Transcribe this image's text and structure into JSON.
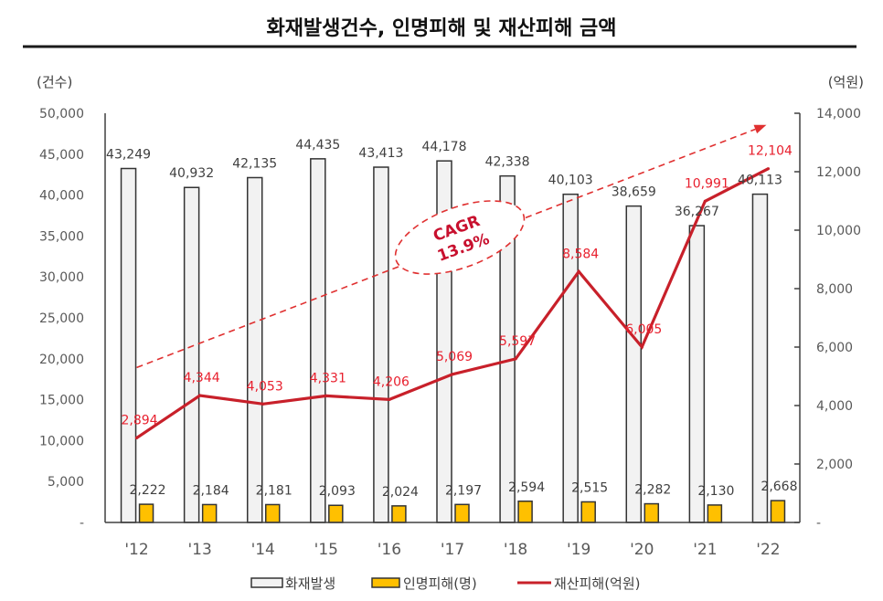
{
  "title": "화재발생건수, 인명피해 및 재산피해 금액",
  "chart_data": {
    "type": "bar+line",
    "title": "화재발생건수, 인명피해 및 재산피해 금액",
    "categories": [
      "'12",
      "'13",
      "'14",
      "'15",
      "'16",
      "'17",
      "'18",
      "'19",
      "'20",
      "'21",
      "'22"
    ],
    "series": [
      {
        "name": "화재발생",
        "type": "bar",
        "axis": "left",
        "color": "#f2f2f2",
        "values": [
          43249,
          40932,
          42135,
          44435,
          43413,
          44178,
          42338,
          40103,
          38659,
          36267,
          40113
        ],
        "labels": [
          "43,249",
          "40,932",
          "42,135",
          "44,435",
          "43,413",
          "44,178",
          "42,338",
          "40,103",
          "38,659",
          "36,267",
          "40,113"
        ]
      },
      {
        "name": "인명피해(명)",
        "type": "bar",
        "axis": "left",
        "color": "#ffc000",
        "values": [
          2222,
          2184,
          2181,
          2093,
          2024,
          2197,
          2594,
          2515,
          2282,
          2130,
          2668
        ],
        "labels": [
          "2,222",
          "2,184",
          "2,181",
          "2,093",
          "2,024",
          "2,197",
          "2,594",
          "2,515",
          "2,282",
          "2,130",
          "2,668"
        ]
      },
      {
        "name": "재산피해(억원)",
        "type": "line",
        "axis": "right",
        "color": "#c8202a",
        "label_color": "#e8202e",
        "values": [
          2894,
          4344,
          4053,
          4331,
          4206,
          5069,
          5597,
          8584,
          6005,
          10991,
          12104
        ],
        "labels": [
          "2,894",
          "4,344",
          "4,053",
          "4,331",
          "4,206",
          "5,069",
          "5,597",
          "8,584",
          "6,005",
          "10,991",
          "12,104"
        ]
      }
    ],
    "y_left": {
      "label": "(건수)",
      "range": [
        0,
        50000
      ],
      "ticks": [
        0,
        5000,
        10000,
        15000,
        20000,
        25000,
        30000,
        35000,
        40000,
        45000,
        50000
      ],
      "tick_labels": [
        "-",
        "5,000",
        "10,000",
        "15,000",
        "20,000",
        "25,000",
        "30,000",
        "35,000",
        "40,000",
        "45,000",
        "50,000"
      ]
    },
    "y_right": {
      "label": "(억원)",
      "range": [
        0,
        14000
      ],
      "ticks": [
        0,
        2000,
        4000,
        6000,
        8000,
        10000,
        12000,
        14000
      ],
      "tick_labels": [
        "-",
        "2,000",
        "4,000",
        "6,000",
        "8,000",
        "10,000",
        "12,000",
        "14,000"
      ]
    },
    "grid": false,
    "annotation": {
      "type": "dashed-trend-arrow",
      "axis": "right",
      "start_value": 5300,
      "end_value": 13600,
      "text_lines": [
        "CAGR",
        "13.9%"
      ],
      "color": "#e03030"
    },
    "legend": {
      "position": "bottom",
      "items": [
        {
          "label": "화재발생",
          "kind": "bar",
          "color": "#f2f2f2"
        },
        {
          "label": "인명피해(명)",
          "kind": "bar",
          "color": "#ffc000"
        },
        {
          "label": "재산피해(억원)",
          "kind": "line",
          "color": "#c8202a"
        }
      ]
    }
  }
}
